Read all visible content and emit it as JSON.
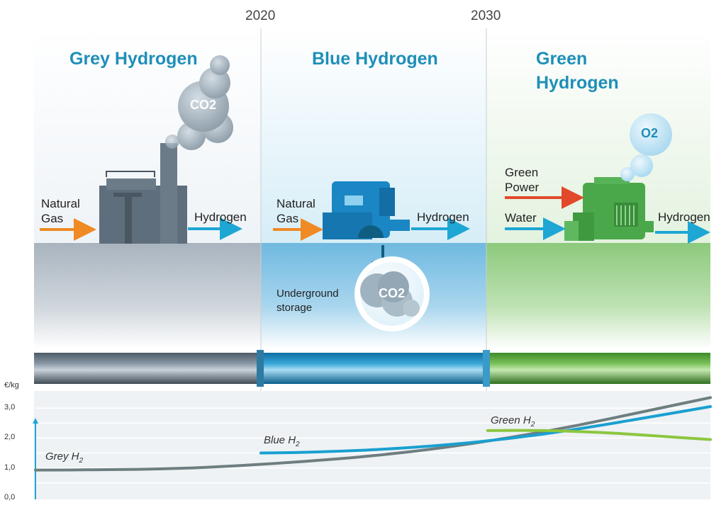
{
  "timeline": {
    "years": [
      "2020",
      "2030"
    ]
  },
  "panels": {
    "grey": {
      "title": "Grey Hydrogen",
      "input_label_line1": "Natural",
      "input_label_line2": "Gas",
      "output_label": "Hydrogen",
      "emission": "CO2",
      "color": "#5f6e7c"
    },
    "blue": {
      "title": "Blue Hydrogen",
      "input_label_line1": "Natural",
      "input_label_line2": "Gas",
      "output_label": "Hydrogen",
      "storage_line1": "Underground",
      "storage_line2": "storage",
      "emission": "CO2",
      "color": "#1a86c4"
    },
    "green": {
      "title_line1": "Green",
      "title_line2": "Hydrogen",
      "input1_line1": "Green",
      "input1_line2": "Power",
      "input2_label": "Water",
      "output_label": "Hydrogen",
      "emission": "O2",
      "color": "#4aa84a"
    }
  },
  "colors": {
    "title": "#1e8fb8",
    "arrow_gas": "#f08a24",
    "arrow_hydrogen": "#1ea6d4",
    "arrow_power": "#e04a2a"
  },
  "chart_data": {
    "type": "line",
    "ylabel": "€/kg",
    "yticks": [
      "0,0",
      "1,0",
      "2,0",
      "3,0"
    ],
    "ylim": [
      0,
      3.4
    ],
    "x_markers": [
      "2020",
      "2030"
    ],
    "series": [
      {
        "name": "Grey H2",
        "label_main": "Grey H",
        "label_sub": "2",
        "color": "#6e7e80",
        "points": [
          [
            0,
            0.93
          ],
          [
            0.1,
            0.94
          ],
          [
            0.2,
            0.97
          ],
          [
            0.3,
            1.07
          ],
          [
            0.4,
            1.22
          ],
          [
            0.5,
            1.4
          ],
          [
            0.6,
            1.66
          ],
          [
            0.7,
            2.0
          ],
          [
            0.8,
            2.4
          ],
          [
            0.9,
            2.88
          ],
          [
            1.0,
            3.35
          ]
        ]
      },
      {
        "name": "Blue H2",
        "label_main": "Blue H",
        "label_sub": "2",
        "color": "#1aa0d0",
        "points": [
          [
            0.334,
            1.5
          ],
          [
            0.4,
            1.52
          ],
          [
            0.5,
            1.6
          ],
          [
            0.6,
            1.75
          ],
          [
            0.7,
            1.97
          ],
          [
            0.8,
            2.28
          ],
          [
            0.9,
            2.66
          ],
          [
            1.0,
            3.05
          ]
        ]
      },
      {
        "name": "Green H2",
        "label_main": "Green H",
        "label_sub": "2",
        "color": "#8cc63f",
        "points": [
          [
            0.67,
            2.25
          ],
          [
            0.75,
            2.26
          ],
          [
            0.85,
            2.18
          ],
          [
            0.93,
            2.05
          ],
          [
            1.0,
            1.95
          ]
        ]
      }
    ]
  }
}
